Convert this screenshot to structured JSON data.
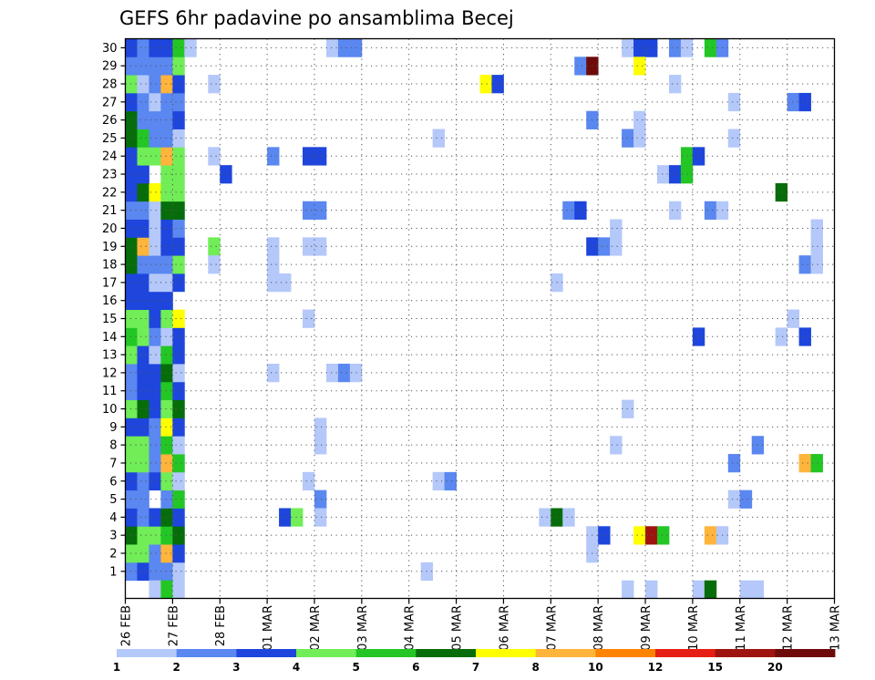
{
  "chart_data": {
    "type": "heatmap",
    "title": "GEFS 6hr padavine po ansamblima Becej",
    "xlabel": "",
    "ylabel": "",
    "x_tick_labels": [
      "26 FEB",
      "27 FEB",
      "28 FEB",
      "01 MAR",
      "02 MAR",
      "03 MAR",
      "04 MAR",
      "05 MAR",
      "06 MAR",
      "07 MAR",
      "08 MAR",
      "09 MAR",
      "10 MAR",
      "11 MAR",
      "12 MAR",
      "13 MAR"
    ],
    "y_tick_labels": [
      "1",
      "2",
      "3",
      "4",
      "5",
      "6",
      "7",
      "8",
      "9",
      "10",
      "11",
      "12",
      "13",
      "14",
      "15",
      "16",
      "17",
      "18",
      "19",
      "20",
      "21",
      "22",
      "23",
      "24",
      "25",
      "26",
      "27",
      "28",
      "29",
      "30"
    ],
    "ylim": [
      0,
      30
    ],
    "grid": true,
    "color_levels": [
      {
        "label": "1",
        "color": "#b4c8fa"
      },
      {
        "label": "2",
        "color": "#5a87f0"
      },
      {
        "label": "3",
        "color": "#1e46dc"
      },
      {
        "label": "4",
        "color": "#70ed57"
      },
      {
        "label": "5",
        "color": "#23c625"
      },
      {
        "label": "6",
        "color": "#076d0a"
      },
      {
        "label": "7",
        "color": "#ffff00"
      },
      {
        "label": "8",
        "color": "#ffb43c"
      },
      {
        "label": "10",
        "color": "#ff8200"
      },
      {
        "label": "12",
        "color": "#e61e14"
      },
      {
        "label": "15",
        "color": "#a0140f"
      },
      {
        "label": "20",
        "color": "#6e0a0a"
      }
    ],
    "cells": [
      [
        0,
        1,
        2
      ],
      [
        1,
        1,
        3
      ],
      [
        2,
        1,
        2
      ],
      [
        3,
        1,
        2
      ],
      [
        4,
        1,
        1
      ],
      [
        0,
        2,
        4
      ],
      [
        1,
        2,
        4
      ],
      [
        2,
        2,
        2
      ],
      [
        3,
        2,
        8
      ],
      [
        4,
        2,
        3
      ],
      [
        0,
        3,
        6
      ],
      [
        1,
        3,
        4
      ],
      [
        2,
        3,
        4
      ],
      [
        3,
        3,
        5
      ],
      [
        4,
        3,
        6
      ],
      [
        0,
        4,
        3
      ],
      [
        1,
        4,
        2
      ],
      [
        2,
        4,
        3
      ],
      [
        3,
        4,
        6
      ],
      [
        4,
        4,
        3
      ],
      [
        0,
        5,
        2
      ],
      [
        1,
        5,
        2
      ],
      [
        3,
        5,
        2
      ],
      [
        4,
        5,
        5
      ],
      [
        0,
        6,
        3
      ],
      [
        1,
        6,
        2
      ],
      [
        2,
        6,
        3
      ],
      [
        3,
        6,
        4
      ],
      [
        4,
        6,
        1
      ],
      [
        0,
        7,
        4
      ],
      [
        1,
        7,
        4
      ],
      [
        2,
        7,
        2
      ],
      [
        3,
        7,
        8
      ],
      [
        4,
        7,
        5
      ],
      [
        0,
        8,
        4
      ],
      [
        1,
        8,
        4
      ],
      [
        2,
        8,
        2
      ],
      [
        3,
        8,
        5
      ],
      [
        4,
        8,
        1
      ],
      [
        0,
        9,
        3
      ],
      [
        1,
        9,
        3
      ],
      [
        2,
        9,
        2
      ],
      [
        3,
        9,
        7
      ],
      [
        4,
        9,
        3
      ],
      [
        0,
        10,
        4
      ],
      [
        1,
        10,
        6
      ],
      [
        2,
        10,
        3
      ],
      [
        3,
        10,
        4
      ],
      [
        4,
        10,
        6
      ],
      [
        0,
        11,
        2
      ],
      [
        1,
        11,
        3
      ],
      [
        2,
        11,
        3
      ],
      [
        3,
        11,
        5
      ],
      [
        4,
        11,
        3
      ],
      [
        0,
        12,
        2
      ],
      [
        1,
        12,
        3
      ],
      [
        2,
        12,
        3
      ],
      [
        3,
        12,
        6
      ],
      [
        4,
        12,
        1
      ],
      [
        0,
        13,
        4
      ],
      [
        1,
        13,
        3
      ],
      [
        2,
        13,
        1
      ],
      [
        3,
        13,
        5
      ],
      [
        4,
        13,
        3
      ],
      [
        0,
        14,
        5
      ],
      [
        1,
        14,
        4
      ],
      [
        2,
        14,
        2
      ],
      [
        3,
        14,
        1
      ],
      [
        4,
        14,
        3
      ],
      [
        0,
        15,
        4
      ],
      [
        1,
        15,
        4
      ],
      [
        2,
        15,
        3
      ],
      [
        3,
        15,
        4
      ],
      [
        4,
        15,
        7
      ],
      [
        0,
        16,
        3
      ],
      [
        1,
        16,
        3
      ],
      [
        2,
        16,
        3
      ],
      [
        3,
        16,
        3
      ],
      [
        0,
        17,
        3
      ],
      [
        1,
        17,
        3
      ],
      [
        2,
        17,
        1
      ],
      [
        3,
        17,
        1
      ],
      [
        4,
        17,
        3
      ],
      [
        0,
        18,
        6
      ],
      [
        1,
        18,
        2
      ],
      [
        2,
        18,
        2
      ],
      [
        3,
        18,
        2
      ],
      [
        4,
        18,
        4
      ],
      [
        0,
        19,
        6
      ],
      [
        1,
        19,
        8
      ],
      [
        2,
        19,
        1
      ],
      [
        3,
        19,
        3
      ],
      [
        4,
        19,
        3
      ],
      [
        0,
        20,
        3
      ],
      [
        1,
        20,
        3
      ],
      [
        2,
        20,
        1
      ],
      [
        3,
        20,
        3
      ],
      [
        4,
        20,
        2
      ],
      [
        0,
        21,
        2
      ],
      [
        1,
        21,
        2
      ],
      [
        2,
        21,
        1
      ],
      [
        3,
        21,
        6
      ],
      [
        4,
        21,
        6
      ],
      [
        0,
        22,
        3
      ],
      [
        1,
        22,
        6
      ],
      [
        2,
        22,
        7
      ],
      [
        3,
        22,
        4
      ],
      [
        4,
        22,
        4
      ],
      [
        0,
        23,
        3
      ],
      [
        1,
        23,
        3
      ],
      [
        3,
        23,
        4
      ],
      [
        4,
        23,
        4
      ],
      [
        0,
        24,
        3
      ],
      [
        1,
        24,
        4
      ],
      [
        2,
        24,
        4
      ],
      [
        3,
        24,
        8
      ],
      [
        4,
        24,
        4
      ],
      [
        0,
        25,
        6
      ],
      [
        1,
        25,
        5
      ],
      [
        2,
        25,
        2
      ],
      [
        3,
        25,
        2
      ],
      [
        4,
        25,
        1
      ],
      [
        0,
        26,
        6
      ],
      [
        1,
        26,
        2
      ],
      [
        2,
        26,
        2
      ],
      [
        3,
        26,
        2
      ],
      [
        4,
        26,
        3
      ],
      [
        0,
        27,
        3
      ],
      [
        1,
        27,
        2
      ],
      [
        2,
        27,
        1
      ],
      [
        3,
        27,
        2
      ],
      [
        4,
        27,
        2
      ],
      [
        0,
        28,
        4
      ],
      [
        1,
        28,
        1
      ],
      [
        2,
        28,
        2
      ],
      [
        3,
        28,
        8
      ],
      [
        4,
        28,
        3
      ],
      [
        0,
        29,
        2
      ],
      [
        1,
        29,
        2
      ],
      [
        2,
        29,
        2
      ],
      [
        3,
        29,
        2
      ],
      [
        4,
        29,
        4
      ],
      [
        0,
        30,
        3
      ],
      [
        1,
        30,
        2
      ],
      [
        2,
        30,
        3
      ],
      [
        3,
        30,
        3
      ],
      [
        4,
        30,
        5
      ],
      [
        5,
        30,
        1
      ],
      [
        2,
        0,
        1
      ],
      [
        3,
        0,
        5
      ],
      [
        4,
        0,
        1
      ],
      [
        7,
        28,
        1
      ],
      [
        7,
        24,
        1
      ],
      [
        7,
        19,
        4
      ],
      [
        7,
        18,
        1
      ],
      [
        8,
        23,
        3
      ],
      [
        12,
        24,
        2
      ],
      [
        12,
        19,
        1
      ],
      [
        12,
        18,
        1
      ],
      [
        12,
        17,
        1
      ],
      [
        12,
        12,
        1
      ],
      [
        13,
        17,
        1
      ],
      [
        13,
        4,
        3
      ],
      [
        14,
        4,
        4
      ],
      [
        15,
        24,
        3
      ],
      [
        15,
        21,
        2
      ],
      [
        15,
        19,
        1
      ],
      [
        15,
        15,
        1
      ],
      [
        15,
        6,
        1
      ],
      [
        16,
        24,
        3
      ],
      [
        16,
        21,
        2
      ],
      [
        16,
        19,
        1
      ],
      [
        16,
        9,
        1
      ],
      [
        16,
        8,
        1
      ],
      [
        16,
        5,
        2
      ],
      [
        16,
        4,
        1
      ],
      [
        17,
        30,
        1
      ],
      [
        17,
        12,
        1
      ],
      [
        18,
        30,
        2
      ],
      [
        18,
        12,
        2
      ],
      [
        19,
        30,
        2
      ],
      [
        19,
        12,
        1
      ],
      [
        25,
        1,
        1
      ],
      [
        26,
        25,
        1
      ],
      [
        26,
        6,
        1
      ],
      [
        27,
        6,
        2
      ],
      [
        30,
        28,
        7
      ],
      [
        31,
        28,
        3
      ],
      [
        35,
        4,
        1
      ],
      [
        36,
        17,
        1
      ],
      [
        36,
        4,
        6
      ],
      [
        37,
        4,
        1
      ],
      [
        37,
        21,
        2
      ],
      [
        38,
        21,
        3
      ],
      [
        38,
        29,
        2
      ],
      [
        39,
        29,
        12
      ],
      [
        39,
        26,
        2
      ],
      [
        39,
        19,
        3
      ],
      [
        39,
        3,
        1
      ],
      [
        39,
        2,
        1
      ],
      [
        40,
        19,
        2
      ],
      [
        40,
        3,
        3
      ],
      [
        41,
        19,
        1
      ],
      [
        41,
        20,
        1
      ],
      [
        41,
        8,
        1
      ],
      [
        42,
        30,
        1
      ],
      [
        42,
        25,
        2
      ],
      [
        42,
        10,
        1
      ],
      [
        42,
        0,
        1
      ],
      [
        43,
        30,
        3
      ],
      [
        43,
        25,
        1
      ],
      [
        43,
        26,
        1
      ],
      [
        43,
        29,
        7
      ],
      [
        43,
        3,
        7
      ],
      [
        44,
        30,
        3
      ],
      [
        44,
        3,
        11
      ],
      [
        44,
        0,
        1
      ],
      [
        45,
        23,
        1
      ],
      [
        45,
        3,
        5
      ],
      [
        46,
        30,
        2
      ],
      [
        46,
        28,
        1
      ],
      [
        46,
        23,
        3
      ],
      [
        46,
        21,
        1
      ],
      [
        47,
        30,
        1
      ],
      [
        47,
        24,
        5
      ],
      [
        47,
        23,
        5
      ],
      [
        48,
        24,
        3
      ],
      [
        48,
        14,
        3
      ],
      [
        48,
        0,
        1
      ],
      [
        49,
        30,
        5
      ],
      [
        49,
        21,
        2
      ],
      [
        49,
        3,
        8
      ],
      [
        49,
        0,
        6
      ],
      [
        50,
        30,
        2
      ],
      [
        50,
        21,
        1
      ],
      [
        50,
        3,
        1
      ],
      [
        51,
        27,
        1
      ],
      [
        51,
        25,
        1
      ],
      [
        51,
        7,
        2
      ],
      [
        51,
        5,
        1
      ],
      [
        52,
        5,
        2
      ],
      [
        52,
        0,
        1
      ],
      [
        53,
        8,
        2
      ],
      [
        53,
        0,
        1
      ],
      [
        55,
        22,
        6
      ],
      [
        55,
        14,
        1
      ],
      [
        56,
        27,
        2
      ],
      [
        56,
        15,
        1
      ],
      [
        57,
        27,
        3
      ],
      [
        57,
        18,
        2
      ],
      [
        57,
        14,
        3
      ],
      [
        57,
        7,
        8
      ],
      [
        58,
        20,
        1
      ],
      [
        58,
        19,
        1
      ],
      [
        58,
        18,
        1
      ],
      [
        58,
        7,
        5
      ]
    ]
  }
}
